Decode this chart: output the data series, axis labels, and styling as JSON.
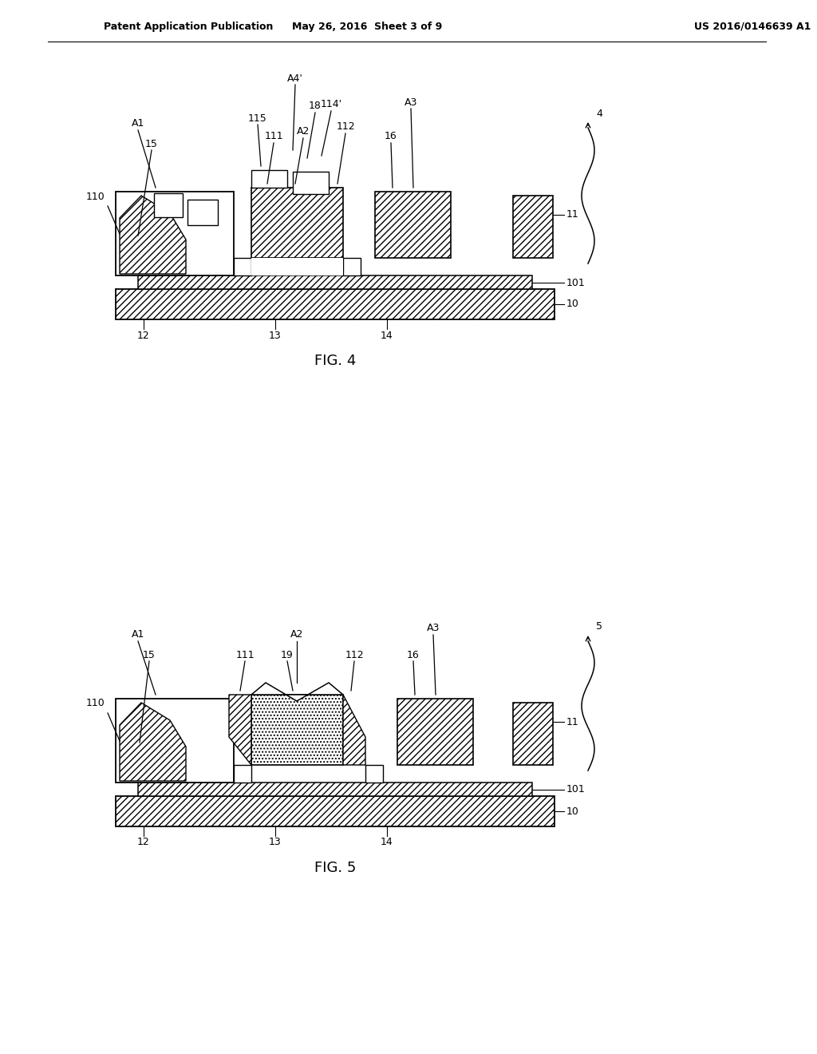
{
  "header_left": "Patent Application Publication",
  "header_mid": "May 26, 2016  Sheet 3 of 9",
  "header_right": "US 2016/0146639 A1",
  "fig4_label": "FIG. 4",
  "fig5_label": "FIG. 5",
  "background_color": "#ffffff"
}
